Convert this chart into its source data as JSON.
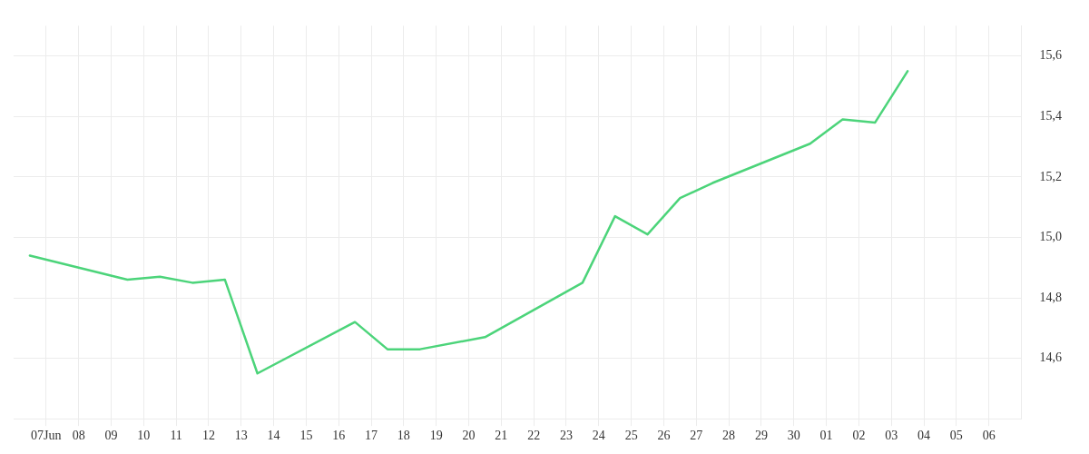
{
  "chart_data": {
    "type": "line",
    "x": [
      "--06-06T12:00",
      "--06-09T12:00",
      "--06-10T12:00",
      "--06-11T12:00",
      "--06-12T12:00",
      "--06-13T12:00",
      "--06-16T12:00",
      "--06-17T12:00",
      "--06-18T12:00",
      "--06-20T12:00",
      "--06-23T12:00",
      "--06-24T12:00",
      "--06-25T12:00",
      "--06-26T12:00",
      "--06-27T12:00",
      "--06-30T12:00",
      "--07-01T12:00",
      "--07-02T12:00",
      "--07-03T12:00"
    ],
    "series": [
      {
        "color": "#4cd47a",
        "values": [
          14.94,
          14.86,
          14.87,
          14.85,
          14.86,
          14.55,
          14.72,
          14.63,
          14.63,
          14.67,
          14.85,
          15.07,
          15.01,
          15.13,
          15.18,
          15.31,
          15.39,
          15.38,
          15.55
        ]
      }
    ],
    "xlim": [
      "--06-06",
      "--07-07"
    ],
    "xticks": [
      {
        "value": "--06-07",
        "label": "07Jun"
      },
      {
        "value": "--06-08",
        "label": "08"
      },
      {
        "value": "--06-09",
        "label": "09"
      },
      {
        "value": "--06-10",
        "label": "10"
      },
      {
        "value": "--06-11",
        "label": "11"
      },
      {
        "value": "--06-12",
        "label": "12"
      },
      {
        "value": "--06-13",
        "label": "13"
      },
      {
        "value": "--06-14",
        "label": "14"
      },
      {
        "value": "--06-15",
        "label": "15"
      },
      {
        "value": "--06-16",
        "label": "16"
      },
      {
        "value": "--06-17",
        "label": "17"
      },
      {
        "value": "--06-18",
        "label": "18"
      },
      {
        "value": "--06-19",
        "label": "19"
      },
      {
        "value": "--06-20",
        "label": "20"
      },
      {
        "value": "--06-21",
        "label": "21"
      },
      {
        "value": "--06-22",
        "label": "22"
      },
      {
        "value": "--06-23",
        "label": "23"
      },
      {
        "value": "--06-24",
        "label": "24"
      },
      {
        "value": "--06-25",
        "label": "25"
      },
      {
        "value": "--06-26",
        "label": "26"
      },
      {
        "value": "--06-27",
        "label": "27"
      },
      {
        "value": "--06-28",
        "label": "28"
      },
      {
        "value": "--06-29",
        "label": "29"
      },
      {
        "value": "--06-30",
        "label": "30"
      },
      {
        "value": "--07-01",
        "label": "01"
      },
      {
        "value": "--07-02",
        "label": "02"
      },
      {
        "value": "--07-03",
        "label": "03"
      },
      {
        "value": "--07-04",
        "label": "04"
      },
      {
        "value": "--07-05",
        "label": "05"
      },
      {
        "value": "--07-06",
        "label": "06"
      }
    ],
    "ylim": [
      14.4,
      15.7
    ],
    "yticks": [
      {
        "value": 14.6,
        "label": "14,6"
      },
      {
        "value": 14.8,
        "label": "14,8"
      },
      {
        "value": 15.0,
        "label": "15,0"
      },
      {
        "value": 15.2,
        "label": "15,2"
      },
      {
        "value": 15.4,
        "label": "15,4"
      },
      {
        "value": 15.6,
        "label": "15,6"
      }
    ],
    "grid": true,
    "legend": false,
    "marker": "none",
    "line_style": "solid"
  }
}
